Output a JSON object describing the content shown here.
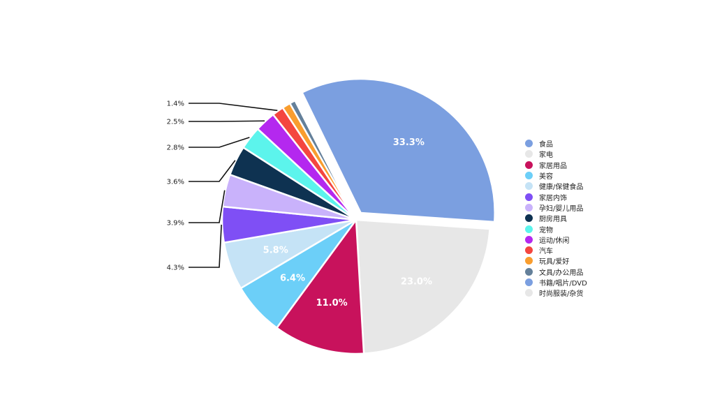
{
  "chart_data": {
    "type": "pie",
    "title": "",
    "legend_position": "right",
    "slices": [
      {
        "label": "食品",
        "value": 33.3,
        "display": "33.3%",
        "color": "#7b9fe0"
      },
      {
        "label": "家电",
        "value": 23.0,
        "display": "23.0%",
        "color": "#e7e7e7"
      },
      {
        "label": "家居用品",
        "value": 11.0,
        "display": "11.0%",
        "color": "#c8125c"
      },
      {
        "label": "美容",
        "value": 6.4,
        "display": "6.4%",
        "color": "#6ccff8"
      },
      {
        "label": "健康/保健食品",
        "value": 5.8,
        "display": "5.8%",
        "color": "#c5e3f6"
      },
      {
        "label": "家居内饰",
        "value": 4.3,
        "display": "4.3%",
        "color": "#7f4ff5"
      },
      {
        "label": "孕妇/婴儿用品",
        "value": 3.9,
        "display": "3.9%",
        "color": "#c9b2fb"
      },
      {
        "label": "厨房用具",
        "value": 3.6,
        "display": "3.6%",
        "color": "#0e3251"
      },
      {
        "label": "宠物",
        "value": 2.8,
        "display": "2.8%",
        "color": "#5cf4ec"
      },
      {
        "label": "运动/休闲",
        "value": 2.5,
        "display": "2.5%",
        "color": "#b428ef"
      },
      {
        "label": "汽车",
        "value": 1.4,
        "display": "1.4%",
        "color": "#f4463f"
      },
      {
        "label": "玩具/爱好",
        "value": 1.0,
        "display": "",
        "color": "#f99d2e"
      },
      {
        "label": "文具/办公用品",
        "value": 0.7,
        "display": "",
        "color": "#64809a"
      },
      {
        "label": "书籍/唱片/DVD",
        "value": 0.2,
        "display": "",
        "color": "#7b9fe0"
      },
      {
        "label": "时尚服装/杂货",
        "value": 0.1,
        "display": "",
        "color": "#e7e7e7"
      }
    ]
  }
}
